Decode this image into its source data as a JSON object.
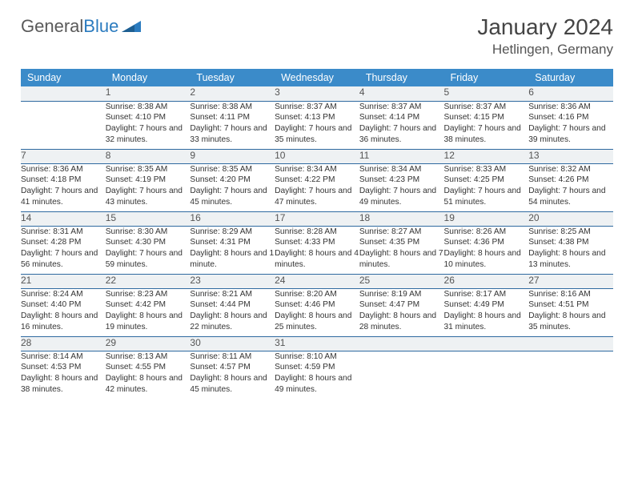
{
  "brand": {
    "part1": "General",
    "part2": "Blue"
  },
  "title": "January 2024",
  "location": "Hetlingen, Germany",
  "colors": {
    "header_bg": "#3b8bc9",
    "header_text": "#ffffff",
    "daynum_bg": "#eef1f3",
    "row_border": "#2f6aa0",
    "logo_blue": "#2b7bbf",
    "text": "#333333"
  },
  "weekdays": [
    "Sunday",
    "Monday",
    "Tuesday",
    "Wednesday",
    "Thursday",
    "Friday",
    "Saturday"
  ],
  "weeks": [
    {
      "nums": [
        "",
        "1",
        "2",
        "3",
        "4",
        "5",
        "6"
      ],
      "cells": [
        {
          "sunrise": "",
          "sunset": "",
          "daylight": ""
        },
        {
          "sunrise": "Sunrise: 8:38 AM",
          "sunset": "Sunset: 4:10 PM",
          "daylight": "Daylight: 7 hours and 32 minutes."
        },
        {
          "sunrise": "Sunrise: 8:38 AM",
          "sunset": "Sunset: 4:11 PM",
          "daylight": "Daylight: 7 hours and 33 minutes."
        },
        {
          "sunrise": "Sunrise: 8:37 AM",
          "sunset": "Sunset: 4:13 PM",
          "daylight": "Daylight: 7 hours and 35 minutes."
        },
        {
          "sunrise": "Sunrise: 8:37 AM",
          "sunset": "Sunset: 4:14 PM",
          "daylight": "Daylight: 7 hours and 36 minutes."
        },
        {
          "sunrise": "Sunrise: 8:37 AM",
          "sunset": "Sunset: 4:15 PM",
          "daylight": "Daylight: 7 hours and 38 minutes."
        },
        {
          "sunrise": "Sunrise: 8:36 AM",
          "sunset": "Sunset: 4:16 PM",
          "daylight": "Daylight: 7 hours and 39 minutes."
        }
      ]
    },
    {
      "nums": [
        "7",
        "8",
        "9",
        "10",
        "11",
        "12",
        "13"
      ],
      "cells": [
        {
          "sunrise": "Sunrise: 8:36 AM",
          "sunset": "Sunset: 4:18 PM",
          "daylight": "Daylight: 7 hours and 41 minutes."
        },
        {
          "sunrise": "Sunrise: 8:35 AM",
          "sunset": "Sunset: 4:19 PM",
          "daylight": "Daylight: 7 hours and 43 minutes."
        },
        {
          "sunrise": "Sunrise: 8:35 AM",
          "sunset": "Sunset: 4:20 PM",
          "daylight": "Daylight: 7 hours and 45 minutes."
        },
        {
          "sunrise": "Sunrise: 8:34 AM",
          "sunset": "Sunset: 4:22 PM",
          "daylight": "Daylight: 7 hours and 47 minutes."
        },
        {
          "sunrise": "Sunrise: 8:34 AM",
          "sunset": "Sunset: 4:23 PM",
          "daylight": "Daylight: 7 hours and 49 minutes."
        },
        {
          "sunrise": "Sunrise: 8:33 AM",
          "sunset": "Sunset: 4:25 PM",
          "daylight": "Daylight: 7 hours and 51 minutes."
        },
        {
          "sunrise": "Sunrise: 8:32 AM",
          "sunset": "Sunset: 4:26 PM",
          "daylight": "Daylight: 7 hours and 54 minutes."
        }
      ]
    },
    {
      "nums": [
        "14",
        "15",
        "16",
        "17",
        "18",
        "19",
        "20"
      ],
      "cells": [
        {
          "sunrise": "Sunrise: 8:31 AM",
          "sunset": "Sunset: 4:28 PM",
          "daylight": "Daylight: 7 hours and 56 minutes."
        },
        {
          "sunrise": "Sunrise: 8:30 AM",
          "sunset": "Sunset: 4:30 PM",
          "daylight": "Daylight: 7 hours and 59 minutes."
        },
        {
          "sunrise": "Sunrise: 8:29 AM",
          "sunset": "Sunset: 4:31 PM",
          "daylight": "Daylight: 8 hours and 1 minute."
        },
        {
          "sunrise": "Sunrise: 8:28 AM",
          "sunset": "Sunset: 4:33 PM",
          "daylight": "Daylight: 8 hours and 4 minutes."
        },
        {
          "sunrise": "Sunrise: 8:27 AM",
          "sunset": "Sunset: 4:35 PM",
          "daylight": "Daylight: 8 hours and 7 minutes."
        },
        {
          "sunrise": "Sunrise: 8:26 AM",
          "sunset": "Sunset: 4:36 PM",
          "daylight": "Daylight: 8 hours and 10 minutes."
        },
        {
          "sunrise": "Sunrise: 8:25 AM",
          "sunset": "Sunset: 4:38 PM",
          "daylight": "Daylight: 8 hours and 13 minutes."
        }
      ]
    },
    {
      "nums": [
        "21",
        "22",
        "23",
        "24",
        "25",
        "26",
        "27"
      ],
      "cells": [
        {
          "sunrise": "Sunrise: 8:24 AM",
          "sunset": "Sunset: 4:40 PM",
          "daylight": "Daylight: 8 hours and 16 minutes."
        },
        {
          "sunrise": "Sunrise: 8:23 AM",
          "sunset": "Sunset: 4:42 PM",
          "daylight": "Daylight: 8 hours and 19 minutes."
        },
        {
          "sunrise": "Sunrise: 8:21 AM",
          "sunset": "Sunset: 4:44 PM",
          "daylight": "Daylight: 8 hours and 22 minutes."
        },
        {
          "sunrise": "Sunrise: 8:20 AM",
          "sunset": "Sunset: 4:46 PM",
          "daylight": "Daylight: 8 hours and 25 minutes."
        },
        {
          "sunrise": "Sunrise: 8:19 AM",
          "sunset": "Sunset: 4:47 PM",
          "daylight": "Daylight: 8 hours and 28 minutes."
        },
        {
          "sunrise": "Sunrise: 8:17 AM",
          "sunset": "Sunset: 4:49 PM",
          "daylight": "Daylight: 8 hours and 31 minutes."
        },
        {
          "sunrise": "Sunrise: 8:16 AM",
          "sunset": "Sunset: 4:51 PM",
          "daylight": "Daylight: 8 hours and 35 minutes."
        }
      ]
    },
    {
      "nums": [
        "28",
        "29",
        "30",
        "31",
        "",
        "",
        ""
      ],
      "cells": [
        {
          "sunrise": "Sunrise: 8:14 AM",
          "sunset": "Sunset: 4:53 PM",
          "daylight": "Daylight: 8 hours and 38 minutes."
        },
        {
          "sunrise": "Sunrise: 8:13 AM",
          "sunset": "Sunset: 4:55 PM",
          "daylight": "Daylight: 8 hours and 42 minutes."
        },
        {
          "sunrise": "Sunrise: 8:11 AM",
          "sunset": "Sunset: 4:57 PM",
          "daylight": "Daylight: 8 hours and 45 minutes."
        },
        {
          "sunrise": "Sunrise: 8:10 AM",
          "sunset": "Sunset: 4:59 PM",
          "daylight": "Daylight: 8 hours and 49 minutes."
        },
        {
          "sunrise": "",
          "sunset": "",
          "daylight": ""
        },
        {
          "sunrise": "",
          "sunset": "",
          "daylight": ""
        },
        {
          "sunrise": "",
          "sunset": "",
          "daylight": ""
        }
      ]
    }
  ]
}
